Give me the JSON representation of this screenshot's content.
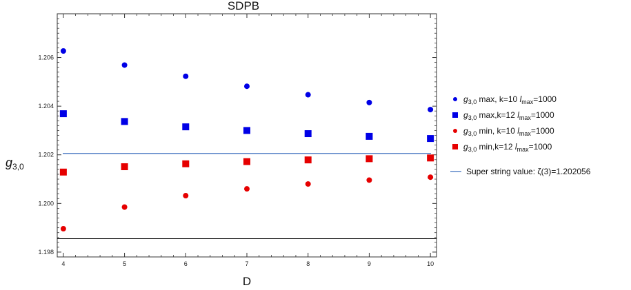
{
  "chart_data": {
    "type": "scatter",
    "title": "SDPB",
    "xlabel": "D",
    "ylabel": {
      "main": "g",
      "sub": "3,0"
    },
    "xlim": [
      3.9,
      10.1
    ],
    "ylim": [
      1.1978,
      1.2078
    ],
    "x_ticks": [
      4,
      5,
      6,
      7,
      8,
      9,
      10
    ],
    "y_ticks": [
      "1.198",
      "1.200",
      "1.202",
      "1.204",
      "1.206"
    ],
    "grid": false,
    "legend_position": "right",
    "series": [
      {
        "name": "g3,0 max, k=10 lmax=1000",
        "legend": {
          "g": "g",
          "sub": "3,0",
          "a": " max, k=10 ",
          "l": "l",
          "lsub": "max",
          "b": "=1000"
        },
        "marker": "circle",
        "color": "#0000e6",
        "x": [
          4,
          5,
          6,
          7,
          8,
          9,
          10
        ],
        "y": [
          1.20627,
          1.20569,
          1.20523,
          1.20482,
          1.20447,
          1.20415,
          1.20386
        ]
      },
      {
        "name": "g3,0 max,k=12 lmax=1000",
        "legend": {
          "g": "g",
          "sub": "3,0",
          "a": " max,k=12 ",
          "l": "l",
          "lsub": "max",
          "b": "=1000"
        },
        "marker": "square",
        "color": "#0000e6",
        "x": [
          4,
          5,
          6,
          7,
          8,
          9,
          10
        ],
        "y": [
          1.20369,
          1.20337,
          1.20315,
          1.203,
          1.20287,
          1.20276,
          1.20267
        ]
      },
      {
        "name": "g3,0 min, k=10 lmax=1000",
        "legend": {
          "g": "g",
          "sub": "3,0",
          "a": " min, k=10 ",
          "l": "l",
          "lsub": "max",
          "b": "=1000"
        },
        "marker": "circle",
        "color": "#e60000",
        "x": [
          4,
          5,
          6,
          7,
          8,
          9,
          10
        ],
        "y": [
          1.19896,
          1.19985,
          1.20032,
          1.2006,
          1.2008,
          1.20096,
          1.20108
        ]
      },
      {
        "name": "g3,0 min,k=12 lmax=1000",
        "legend": {
          "g": "g",
          "sub": "3,0",
          "a": " min,k=12 ",
          "l": "l",
          "lsub": "max",
          "b": "=1000"
        },
        "marker": "square",
        "color": "#e60000",
        "x": [
          4,
          5,
          6,
          7,
          8,
          9,
          10
        ],
        "y": [
          1.20129,
          1.20151,
          1.20163,
          1.20172,
          1.20179,
          1.20184,
          1.20187
        ]
      }
    ],
    "reference_line": {
      "name": "Super string value: ζ(3)=1.202056",
      "legend_text": "Super string value: ζ(3)=1.202056",
      "value": 1.202056,
      "color": "#5b86c8"
    },
    "baseline_y": 1.19855
  },
  "colors": {
    "axis": "#333333",
    "baseline": "#000000"
  }
}
